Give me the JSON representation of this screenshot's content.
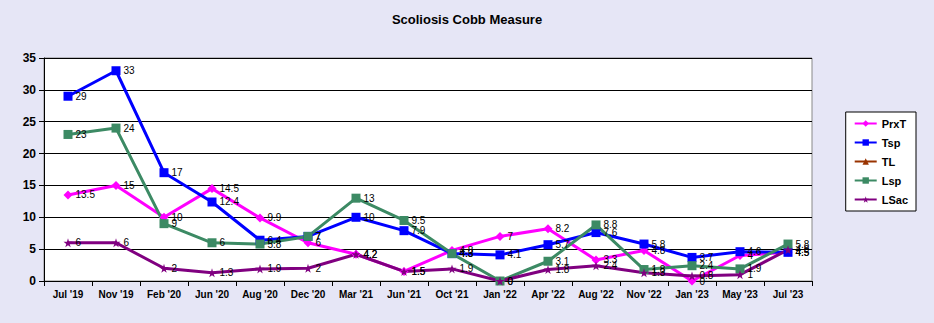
{
  "chart_data": {
    "type": "line",
    "title": "Scoliosis Cobb Measure",
    "categories": [
      "Jul '19",
      "Nov '19",
      "Feb '20",
      "Jun '20",
      "Aug '20",
      "Dec '20",
      "Mar '21",
      "Jun '21",
      "Oct '21",
      "Jan '22",
      "Apr '22",
      "Aug '22",
      "Nov '22",
      "Jan '23",
      "May '23",
      "Jul '23"
    ],
    "series": [
      {
        "name": "PrxT",
        "color": "#ff00ff",
        "marker": "diamond",
        "values": [
          13.5,
          15,
          10,
          14.5,
          9.9,
          6,
          4.2,
          1.5,
          4.8,
          7,
          8.2,
          3.3,
          4.8,
          0,
          4,
          4.5
        ]
      },
      {
        "name": "Tsp",
        "color": "#0000ff",
        "marker": "square",
        "values": [
          29,
          33,
          17,
          12.4,
          6.4,
          7,
          10,
          7.9,
          4.3,
          4.1,
          5.7,
          7.6,
          5.8,
          3.7,
          4.6,
          4.5
        ]
      },
      {
        "name": "TL",
        "color": "#993300",
        "marker": "triangle",
        "values": [
          null,
          null,
          null,
          null,
          null,
          null,
          null,
          null,
          null,
          null,
          null,
          null,
          null,
          null,
          null,
          null
        ]
      },
      {
        "name": "Lsp",
        "color": "#3c8a64",
        "marker": "square",
        "values": [
          23,
          24,
          9,
          6,
          5.8,
          7,
          13,
          9.5,
          4.3,
          0,
          3.1,
          8.8,
          1.8,
          2.4,
          1.9,
          5.8
        ]
      },
      {
        "name": "LSac",
        "color": "#800080",
        "marker": "star",
        "values": [
          6,
          6,
          2,
          1.3,
          1.9,
          2,
          4.2,
          1.5,
          1.9,
          0,
          1.8,
          2.4,
          1.3,
          0.8,
          1,
          4.9
        ]
      }
    ],
    "ylim": [
      0,
      35
    ],
    "yticks": [
      0,
      5,
      10,
      15,
      20,
      25,
      30,
      35
    ],
    "grid": true,
    "legend": "right",
    "data_labels": true
  }
}
